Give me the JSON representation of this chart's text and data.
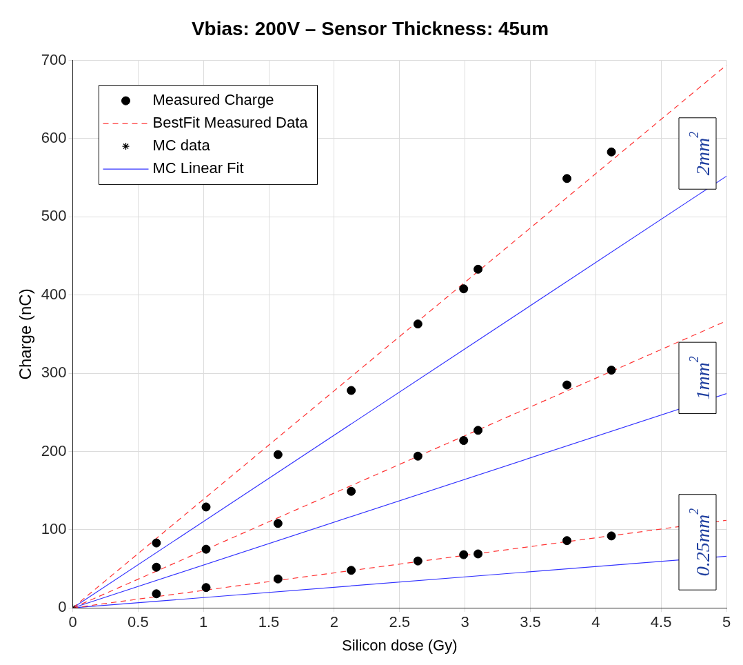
{
  "chart_data": {
    "type": "scatter",
    "title": "Vbias: 200V – Sensor Thickness: 45um",
    "xlabel": "Silicon dose (Gy)",
    "ylabel": "Charge (nC)",
    "xlim": [
      0,
      5
    ],
    "xticks": [
      0,
      0.5,
      1,
      1.5,
      2,
      2.5,
      3,
      3.5,
      4,
      4.5,
      5
    ],
    "ylim": [
      0,
      700
    ],
    "yticks": [
      0,
      100,
      200,
      300,
      400,
      500,
      600,
      700
    ],
    "grid": true,
    "legend": "top left",
    "series": [
      {
        "name": "Measured Charge",
        "type": "scatter",
        "marker": "circle",
        "color": "#000000",
        "x": [
          0.64,
          1.02,
          1.57,
          2.13,
          2.64,
          2.99,
          3.1,
          3.78,
          4.12,
          0.64,
          1.02,
          1.57,
          2.13,
          2.64,
          2.99,
          3.1,
          3.78,
          4.12,
          0.64,
          1.02,
          1.57,
          2.13,
          2.64,
          2.99,
          3.1,
          3.78,
          4.12
        ],
        "values": [
          83,
          129,
          196,
          278,
          363,
          408,
          433,
          549,
          583,
          52,
          75,
          108,
          149,
          194,
          214,
          227,
          285,
          304,
          18,
          26,
          37,
          48,
          60,
          68,
          69,
          86,
          92
        ]
      },
      {
        "name": "BestFit Measured Data",
        "type": "line",
        "line_style": "dashed",
        "marker": "none",
        "color": "#ff3333",
        "x": [
          0,
          5
        ],
        "values": [
          0,
          694
        ]
      },
      {
        "type": "line",
        "line_style": "dashed",
        "marker": "none",
        "color": "#ff3333",
        "x": [
          0,
          5
        ],
        "values": [
          0,
          367
        ]
      },
      {
        "type": "line",
        "line_style": "dashed",
        "marker": "none",
        "color": "#ff3333",
        "x": [
          0,
          5
        ],
        "values": [
          0,
          112
        ]
      },
      {
        "name": "MC data",
        "type": "scatter",
        "marker": "cross",
        "color": "#000000",
        "x": [
          0
        ],
        "values": [
          0
        ]
      },
      {
        "name": "MC Linear Fit",
        "type": "line",
        "line_style": "solid",
        "marker": "none",
        "color": "#3333ff",
        "x": [
          0,
          5
        ],
        "values": [
          0,
          552
        ]
      },
      {
        "type": "line",
        "line_style": "solid",
        "marker": "none",
        "color": "#3333ff",
        "x": [
          0,
          5
        ],
        "values": [
          0,
          274
        ]
      },
      {
        "type": "line",
        "line_style": "solid",
        "marker": "none",
        "color": "#3333ff",
        "x": [
          0,
          5
        ],
        "values": [
          0,
          66
        ]
      }
    ],
    "annotations": [
      "2mm$^{2}$",
      "1mm$^{2}$",
      "0.25mm$^{2}$"
    ]
  }
}
